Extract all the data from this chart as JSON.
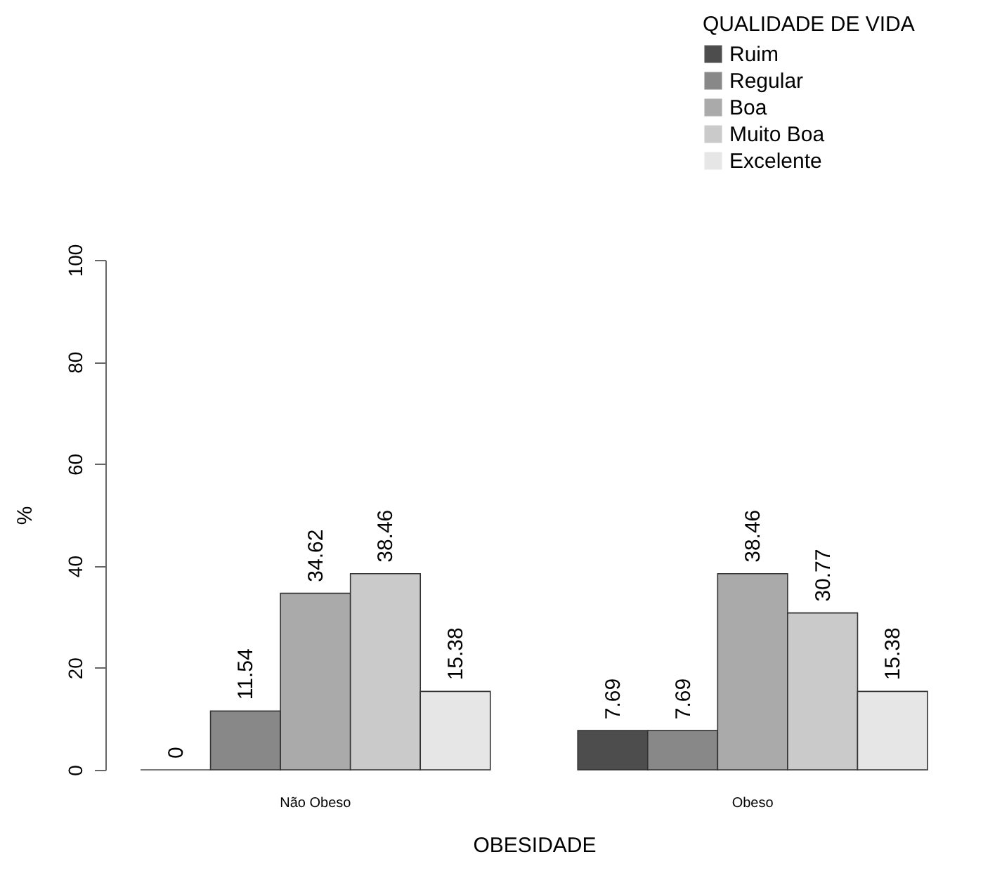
{
  "chart_data": {
    "type": "bar",
    "xlabel": "OBESIDADE",
    "ylabel": "%",
    "legend_title": "QUALIDADE DE VIDA",
    "categories": [
      "Não Obeso",
      "Obeso"
    ],
    "series": [
      {
        "name": "Ruim",
        "color": "#4d4d4d",
        "values": [
          0,
          7.69
        ]
      },
      {
        "name": "Regular",
        "color": "#888888",
        "values": [
          11.54,
          7.69
        ]
      },
      {
        "name": "Boa",
        "color": "#aaaaaa",
        "values": [
          34.62,
          38.46
        ]
      },
      {
        "name": "Muito Boa",
        "color": "#cacaca",
        "values": [
          38.46,
          30.77
        ]
      },
      {
        "name": "Excelente",
        "color": "#e6e6e6",
        "values": [
          15.38,
          15.38
        ]
      }
    ],
    "ylim": [
      0,
      100
    ],
    "yticks": [
      0,
      20,
      40,
      60,
      80,
      100
    ],
    "data_labels": true,
    "legend": "top right",
    "grid": false
  }
}
